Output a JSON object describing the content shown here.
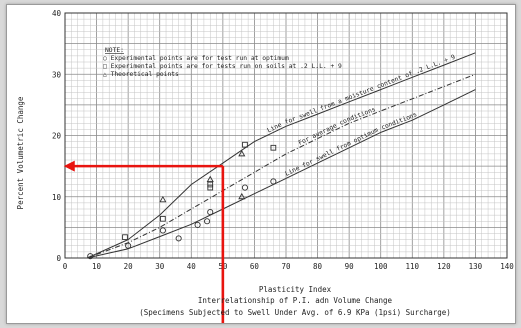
{
  "chart_data": {
    "type": "scatter",
    "xlabel": "Plasticity Index",
    "ylabel": "Percent Volumetric Change",
    "caption_line1": "Interrelationship of P.I. adn Volume Change",
    "caption_line2": "(Specimens Subjected to Swell Under Avg. of 6.9 KPa (1psi) Surcharge)",
    "xlim": [
      0,
      140
    ],
    "ylim": [
      0,
      40
    ],
    "x_ticks": [
      "0",
      "10",
      "20",
      "30",
      "40",
      "50",
      "60",
      "70",
      "80",
      "90",
      "100",
      "110",
      "120",
      "130",
      "140"
    ],
    "y_ticks": [
      "0",
      "10",
      "20",
      "30",
      "40"
    ],
    "grid": true,
    "note": {
      "title": "NOTE:",
      "lines": [
        "○ Experimental points are for test run at optimum",
        "□ Experimental points are for tests run on soils at .2 L.L. + 9",
        "△ Theoretical points"
      ]
    },
    "curves": [
      {
        "label": "Line for swell from a moisture content of .2 L.L. + 9",
        "x": [
          7,
          20,
          30,
          40,
          50,
          60,
          70,
          80,
          90,
          100,
          110,
          120,
          130
        ],
        "y": [
          0,
          3,
          7,
          12,
          15.5,
          19,
          21.5,
          23.5,
          25.5,
          27.5,
          29.5,
          31.5,
          33.5
        ]
      },
      {
        "label": "For average conditions",
        "x": [
          7,
          20,
          30,
          40,
          50,
          60,
          70,
          80,
          90,
          100,
          110,
          120,
          130
        ],
        "y": [
          0,
          2.5,
          5,
          8,
          11,
          14,
          17,
          19.5,
          22,
          24,
          26,
          28,
          30
        ]
      },
      {
        "label": "Line for swell from optimum conditions",
        "x": [
          7,
          20,
          30,
          40,
          50,
          60,
          70,
          80,
          90,
          100,
          110,
          120,
          130
        ],
        "y": [
          0,
          1.5,
          3.5,
          5.5,
          8,
          10.5,
          13,
          15.5,
          18,
          20.5,
          22.5,
          25,
          27.5
        ]
      }
    ],
    "points": {
      "circles": [
        [
          8,
          0.3
        ],
        [
          20,
          2
        ],
        [
          31,
          4.5
        ],
        [
          36,
          3.2
        ],
        [
          42,
          5.4
        ],
        [
          45,
          6
        ],
        [
          46,
          7.5
        ],
        [
          57,
          11.5
        ],
        [
          66,
          12.5
        ]
      ],
      "squares": [
        [
          19,
          3.4
        ],
        [
          31,
          6.4
        ],
        [
          46,
          11.5
        ],
        [
          46,
          12
        ],
        [
          57,
          18.5
        ],
        [
          66,
          18
        ]
      ],
      "triangles": [
        [
          31,
          9.5
        ],
        [
          46,
          12.8
        ],
        [
          56,
          17
        ],
        [
          56,
          10
        ]
      ]
    },
    "annotation": {
      "pi_value": 50,
      "volumetric_change": 15,
      "color": "#e8140f"
    }
  }
}
